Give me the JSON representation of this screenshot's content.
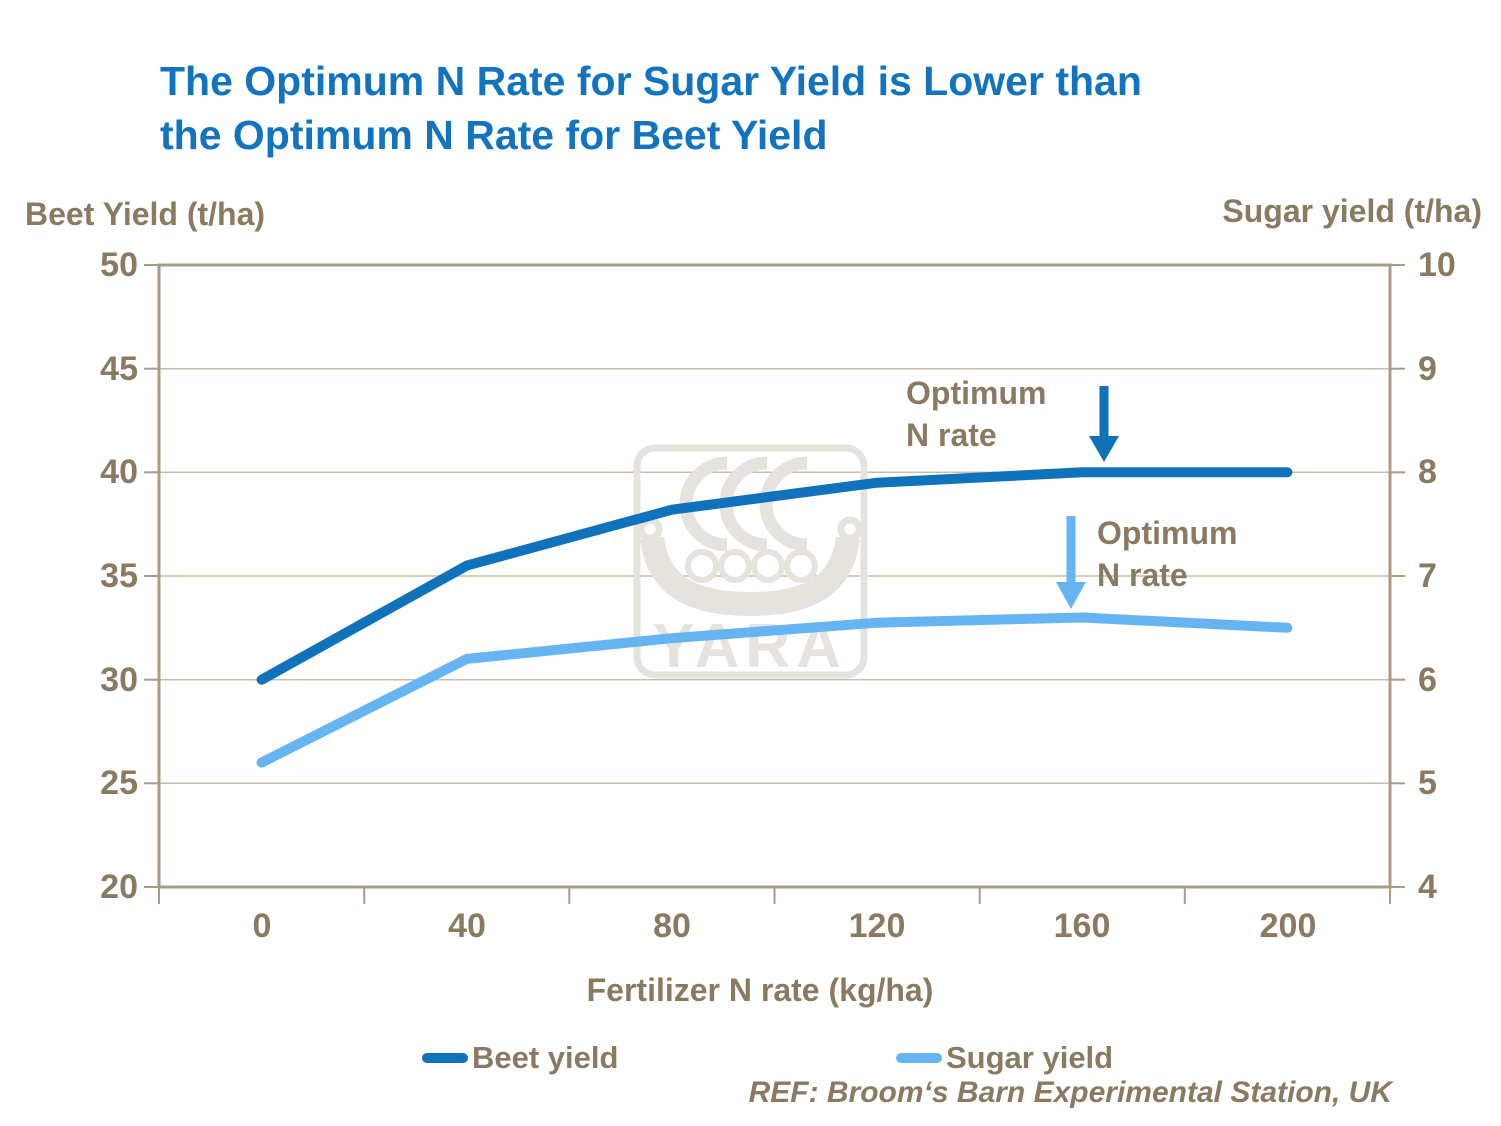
{
  "title": {
    "line1": "The Optimum N Rate for Sugar Yield is Lower than",
    "line2": "the Optimum N Rate for Beet Yield"
  },
  "left_axis": {
    "title": "Beet Yield (t/ha)",
    "ticks": [
      "50",
      "45",
      "40",
      "35",
      "30",
      "25",
      "20"
    ]
  },
  "right_axis": {
    "title": "Sugar yield (t/ha)",
    "ticks": [
      "10",
      "9",
      "8",
      "7",
      "6",
      "5",
      "4"
    ]
  },
  "x_axis": {
    "title": "Fertilizer N rate (kg/ha)",
    "ticks": [
      "0",
      "40",
      "80",
      "120",
      "160",
      "200"
    ]
  },
  "annotations": {
    "beet_optimum": {
      "line1": "Optimum",
      "line2": "N rate"
    },
    "sugar_optimum": {
      "line1": "Optimum",
      "line2": "N rate"
    }
  },
  "legend": {
    "items": [
      {
        "label": "Beet yield",
        "color": "#0F72BA"
      },
      {
        "label": "Sugar yield",
        "color": "#66B5F2"
      }
    ]
  },
  "reference": "REF: Broom‘s Barn Experimental Station, UK",
  "watermark": "YARA",
  "colors": {
    "title_blue": "#1273BE",
    "beet_line": "#0F72BA",
    "sugar_line": "#66B5F2",
    "text_brown": "#8A7A62",
    "gridline": "#C9BDA9",
    "plot_border": "#A89C87",
    "watermark_gray": "#E6E3DF"
  },
  "chart_data": {
    "type": "line",
    "title": "The Optimum N Rate for Sugar Yield is Lower than the Optimum N Rate for Beet Yield",
    "x": [
      0,
      40,
      80,
      120,
      160,
      200
    ],
    "xlabel": "Fertilizer N rate (kg/ha)",
    "ylabel_left": "Beet Yield (t/ha)",
    "ylabel_right": "Sugar yield (t/ha)",
    "left_ylim": [
      20,
      50
    ],
    "right_ylim": [
      4,
      10
    ],
    "grid": true,
    "legend_position": "bottom",
    "series": [
      {
        "name": "Beet yield",
        "axis": "left",
        "color": "#0F72BA",
        "values": [
          30,
          35.5,
          38.2,
          39.5,
          40,
          40
        ]
      },
      {
        "name": "Sugar yield",
        "axis": "right",
        "color": "#66B5F2",
        "values": [
          5.2,
          6.2,
          6.4,
          6.55,
          6.6,
          6.5
        ]
      }
    ],
    "annotations": [
      {
        "text": "Optimum N rate",
        "series": "Beet yield",
        "at_x": 160
      },
      {
        "text": "Optimum N rate",
        "series": "Sugar yield",
        "at_x": 160
      }
    ]
  }
}
